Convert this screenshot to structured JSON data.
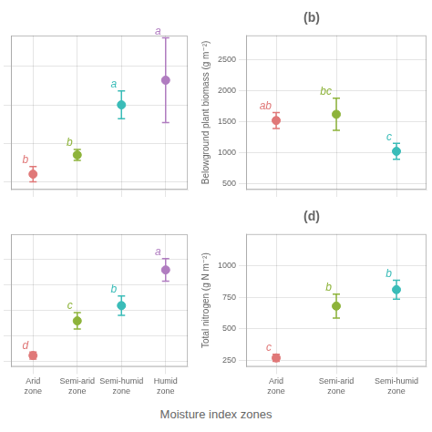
{
  "chart_data": [
    {
      "type": "scatter",
      "categories": [
        "Arid zone",
        "Semi-arid zone",
        "Semi-humid zone",
        "Humid zone"
      ],
      "values": [
        1100,
        1350,
        2000,
        2320
      ],
      "yerr_low": [
        100,
        70,
        180,
        550
      ],
      "yerr_high": [
        100,
        70,
        180,
        550
      ],
      "colors": [
        "#E07878",
        "#8DB33A",
        "#3ABCB8",
        "#B07CC0"
      ],
      "annotations": [
        "b",
        "b",
        "a",
        "a"
      ],
      "ylim": [
        900,
        2900
      ],
      "yticks": [
        1000,
        1500,
        2000,
        2500
      ],
      "grid": true,
      "tick_labels": false
    },
    {
      "type": "scatter",
      "title": "(b)",
      "categories": [
        "Arid zone",
        "Semi-arid zone",
        "Semi-humid zone"
      ],
      "values": [
        1520,
        1620,
        1020
      ],
      "yerr_low": [
        130,
        260,
        130
      ],
      "yerr_high": [
        130,
        260,
        130
      ],
      "colors": [
        "#E07878",
        "#8DB33A",
        "#3ABCB8"
      ],
      "annotations": [
        "ab",
        "bc",
        "c"
      ],
      "ylabel": "Belowground plant biomass (g m⁻²)",
      "ylim": [
        400,
        2900
      ],
      "yticks": [
        500,
        1000,
        1500,
        2000,
        2500
      ],
      "grid": true,
      "tick_labels": "y"
    },
    {
      "type": "scatter",
      "categories": [
        "Arid zone",
        "Semi-arid zone",
        "Semi-humid zone",
        "Humid zone"
      ],
      "values": [
        310,
        650,
        800,
        1150
      ],
      "yerr_low": [
        35,
        80,
        95,
        110
      ],
      "yerr_high": [
        35,
        80,
        95,
        110
      ],
      "colors": [
        "#E07878",
        "#8DB33A",
        "#3ABCB8",
        "#B07CC0"
      ],
      "annotations": [
        "d",
        "c",
        "b",
        "a"
      ],
      "ylim": [
        200,
        1500
      ],
      "yticks": [
        250,
        500,
        750,
        1000,
        1250
      ],
      "grid": true,
      "tick_labels": "x"
    },
    {
      "type": "scatter",
      "title": "(d)",
      "categories": [
        "Arid zone",
        "Semi-arid zone",
        "Semi-humid zone"
      ],
      "values": [
        270,
        680,
        810
      ],
      "yerr_low": [
        28,
        95,
        75
      ],
      "yerr_high": [
        28,
        95,
        75
      ],
      "colors": [
        "#E07878",
        "#8DB33A",
        "#3ABCB8"
      ],
      "annotations": [
        "c",
        "b",
        "b"
      ],
      "ylabel": "Total nitrogen (g N m⁻²)",
      "ylim": [
        200,
        1250
      ],
      "yticks": [
        250,
        500,
        750,
        1000
      ],
      "grid": true
    }
  ],
  "xlabel": "Moisture index zones"
}
